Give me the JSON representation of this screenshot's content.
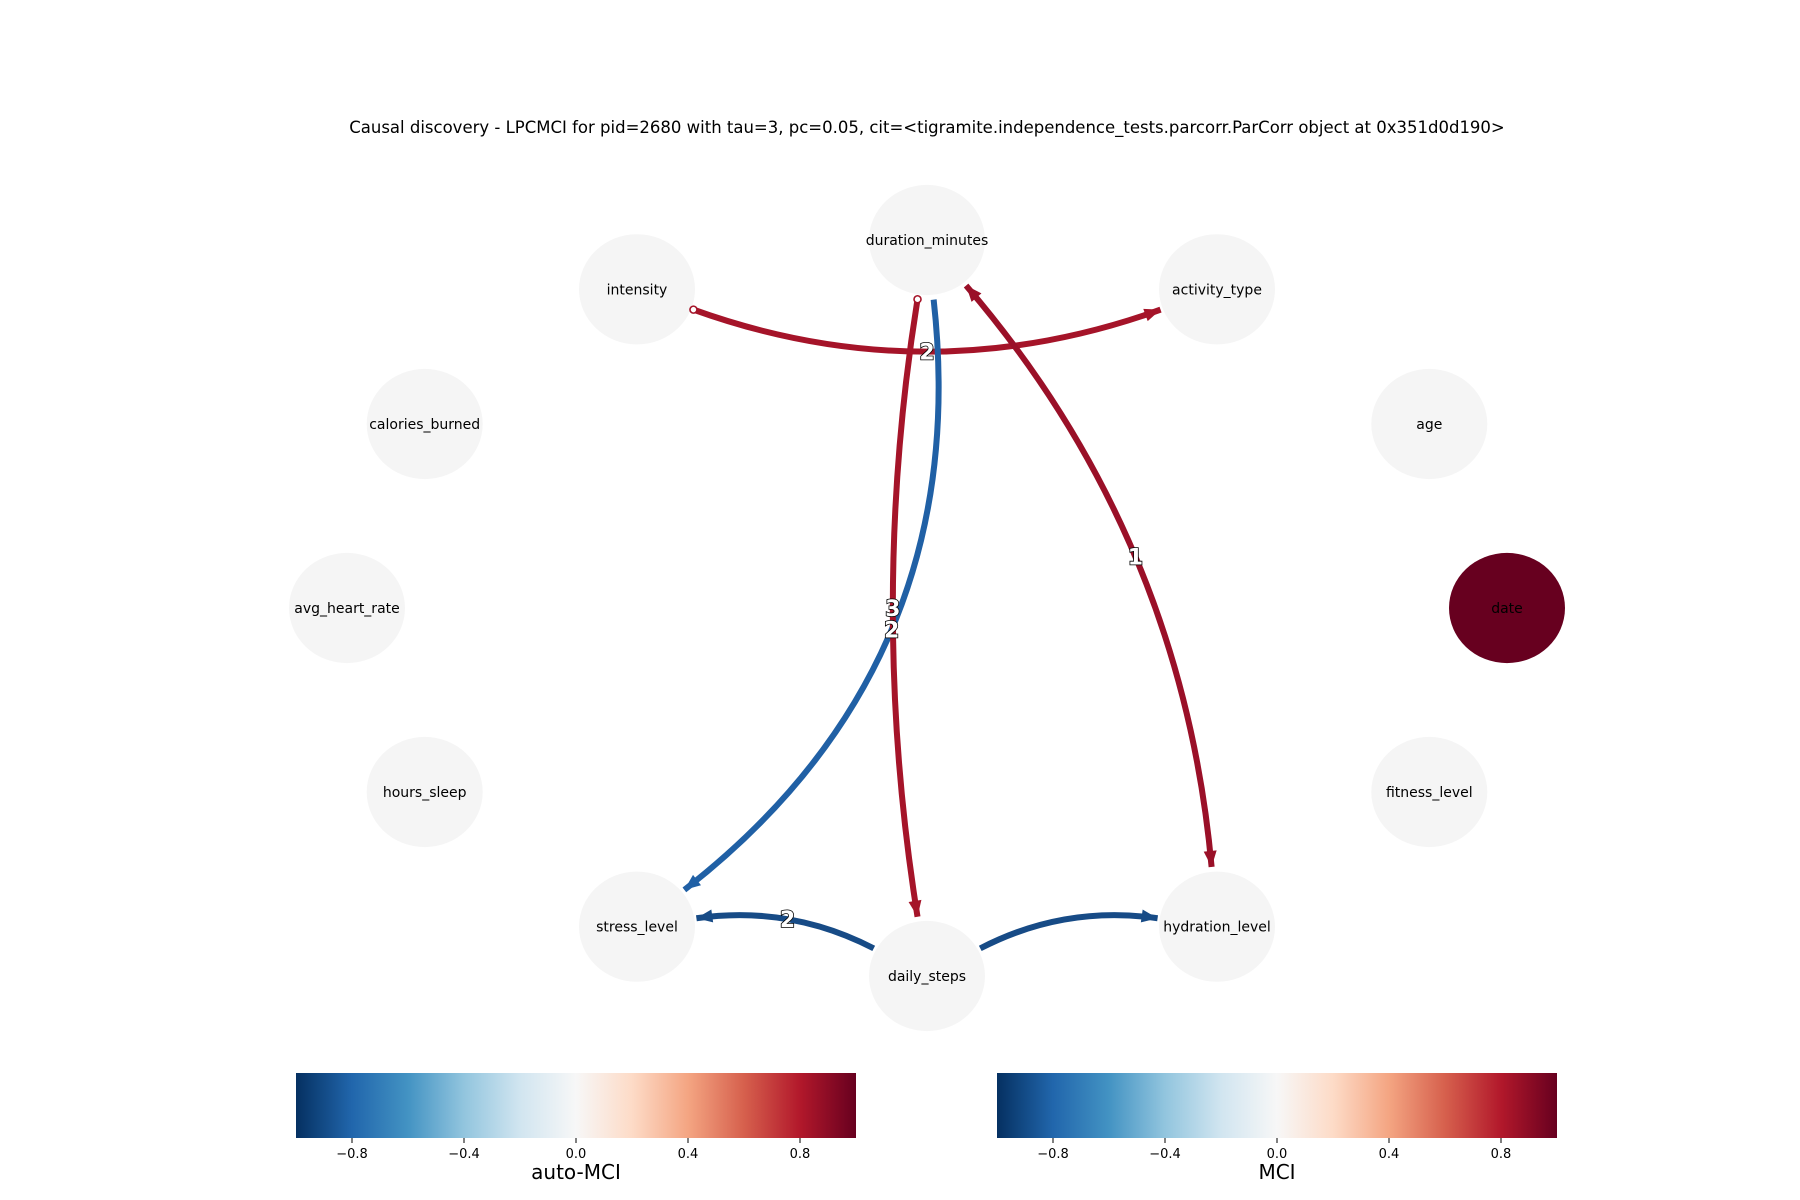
{
  "title": "Causal discovery - LPCMCI for pid=2680 with tau=3, pc=0.05, cit=<tigramite.independence_tests.parcorr.ParCorr object at 0x351d0d190>",
  "nodes": [
    {
      "id": "duration_minutes",
      "label": "duration_minutes",
      "color": "#f5f5f5"
    },
    {
      "id": "activity_type",
      "label": "activity_type",
      "color": "#f5f5f5"
    },
    {
      "id": "age",
      "label": "age",
      "color": "#f5f5f5"
    },
    {
      "id": "date",
      "label": "date",
      "color": "#67001f"
    },
    {
      "id": "fitness_level",
      "label": "fitness_level",
      "color": "#f5f5f5"
    },
    {
      "id": "hydration_level",
      "label": "hydration_level",
      "color": "#f5f5f5"
    },
    {
      "id": "daily_steps",
      "label": "daily_steps",
      "color": "#f5f5f5"
    },
    {
      "id": "stress_level",
      "label": "stress_level",
      "color": "#f5f5f5"
    },
    {
      "id": "hours_sleep",
      "label": "hours_sleep",
      "color": "#f5f5f5"
    },
    {
      "id": "avg_heart_rate",
      "label": "avg_heart_rate",
      "color": "#f5f5f5"
    },
    {
      "id": "calories_burned",
      "label": "calories_burned",
      "color": "#f5f5f5"
    },
    {
      "id": "intensity",
      "label": "intensity",
      "color": "#f5f5f5"
    }
  ],
  "edges": [
    {
      "from": "intensity",
      "to": "activity_type",
      "lag_label": "2",
      "color": "#a51429",
      "tail": "circle",
      "head": "arrow"
    },
    {
      "from": "duration_minutes",
      "to": "stress_level",
      "lag_label": "2",
      "color": "#2060a5",
      "tail": "none",
      "head": "arrow"
    },
    {
      "from": "duration_minutes",
      "to": "daily_steps",
      "lag_label": "3",
      "color": "#a51429",
      "tail": "circle",
      "head": "arrow"
    },
    {
      "from": "hydration_level",
      "to": "duration_minutes",
      "lag_label": "1",
      "color": "#9a1028",
      "tail": "arrow",
      "head": "arrow"
    },
    {
      "from": "daily_steps",
      "to": "stress_level",
      "lag_label": "2",
      "color": "#174b86",
      "tail": "none",
      "head": "arrow"
    },
    {
      "from": "daily_steps",
      "to": "hydration_level",
      "lag_label": "",
      "color": "#174b86",
      "tail": "none",
      "head": "arrow"
    }
  ],
  "colorbars": [
    {
      "label": "auto-MCI",
      "ticks": [
        "−0.8",
        "−0.4",
        "0.0",
        "0.4",
        "0.8"
      ],
      "range": [
        -1,
        1
      ]
    },
    {
      "label": "MCI",
      "ticks": [
        "−0.8",
        "−0.4",
        "0.0",
        "0.4",
        "0.8"
      ],
      "range": [
        -1,
        1
      ]
    }
  ]
}
